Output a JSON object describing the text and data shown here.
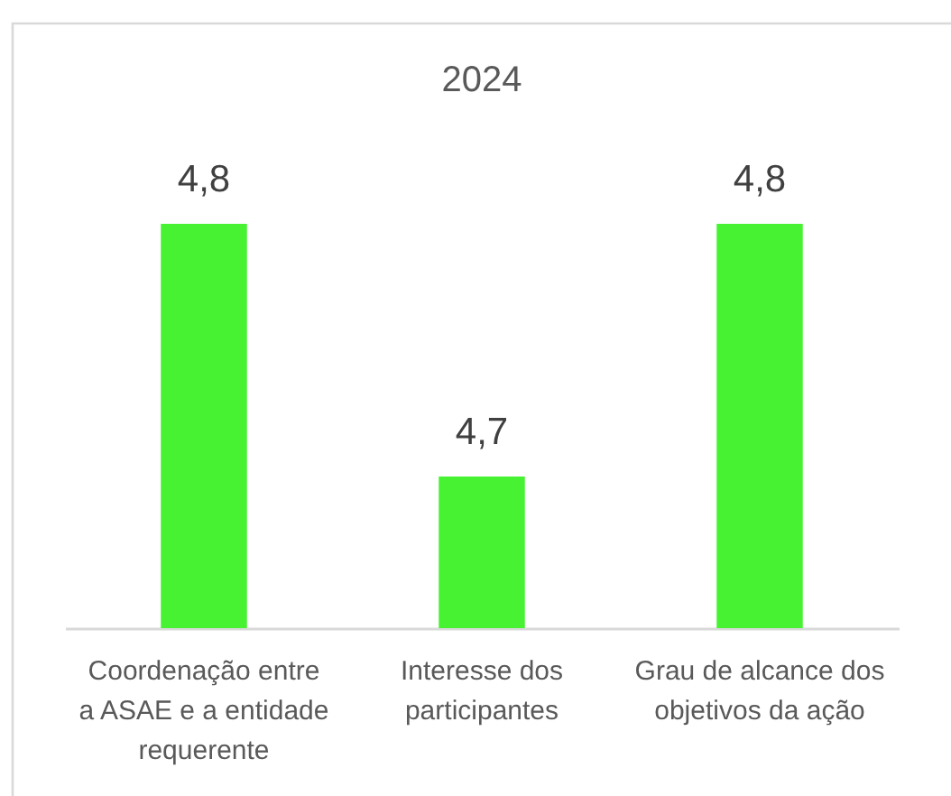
{
  "chart_data": {
    "type": "bar",
    "title": "2024",
    "categories": [
      "Coordenação entre a ASAE e a entidade requerente",
      "Interesse dos participantes",
      "Grau de alcance dos objetivos da ação"
    ],
    "values": [
      4.8,
      4.7,
      4.8
    ],
    "value_labels": [
      "4,8",
      "4,7",
      "4,8"
    ],
    "color": "#47f233",
    "ylim": [
      4.64,
      4.8
    ],
    "tick_labels": "x"
  }
}
